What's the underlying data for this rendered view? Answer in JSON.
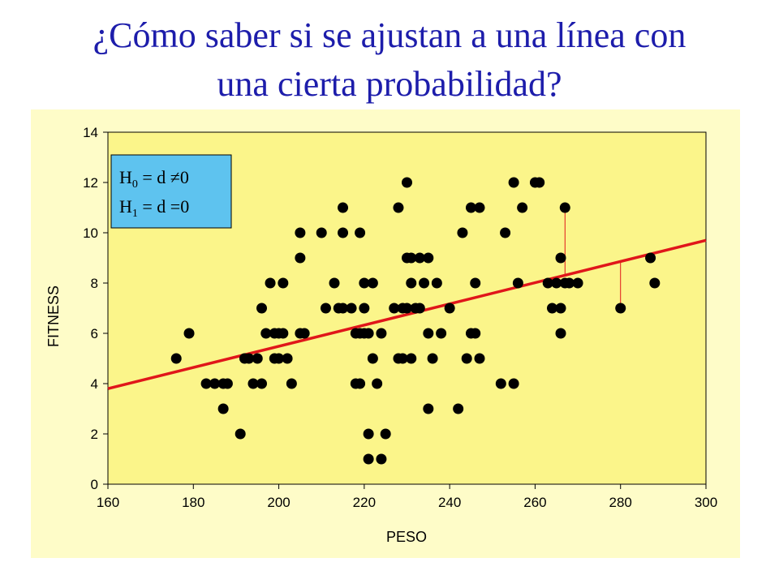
{
  "title": [
    "¿Cómo saber si se ajustan a una línea con",
    "una cierta probabilidad?"
  ],
  "chart_data": {
    "type": "scatter",
    "x_label": "PESO",
    "y_label": "FITNESS",
    "xlim": [
      160,
      300
    ],
    "xticks": [
      160,
      180,
      200,
      220,
      240,
      260,
      280,
      300
    ],
    "ylim": [
      0,
      14
    ],
    "yticks": [
      0,
      2,
      4,
      6,
      8,
      10,
      12,
      14
    ],
    "color": "#000000",
    "line_color": "#e0161a",
    "x": [
      176,
      179,
      183,
      185,
      187,
      188,
      187,
      191,
      192,
      193,
      194,
      195,
      196,
      196,
      197,
      198,
      199,
      200,
      199,
      200,
      201,
      201,
      202,
      203,
      205,
      205,
      205,
      206,
      210,
      211,
      213,
      214,
      215,
      215,
      215,
      217,
      218,
      218,
      219,
      219,
      219,
      220,
      220,
      220,
      221,
      221,
      221,
      222,
      222,
      223,
      224,
      224,
      225,
      227,
      228,
      228,
      229,
      229,
      230,
      230,
      230,
      231,
      231,
      231,
      232,
      233,
      233,
      234,
      235,
      235,
      235,
      236,
      237,
      238,
      240,
      242,
      243,
      244,
      245,
      245,
      246,
      246,
      247,
      247,
      252,
      253,
      255,
      255,
      256,
      257,
      260,
      261,
      263,
      264,
      265,
      266,
      266,
      266,
      267,
      267,
      268,
      270,
      280,
      287,
      288
    ],
    "y": [
      5,
      6,
      4,
      4,
      4,
      4,
      3,
      2,
      5,
      5,
      4,
      5,
      4,
      7,
      6,
      8,
      5,
      5,
      6,
      6,
      6,
      8,
      5,
      4,
      9,
      10,
      6,
      6,
      10,
      7,
      8,
      7,
      11,
      10,
      7,
      7,
      6,
      4,
      10,
      6,
      4,
      8,
      6,
      7,
      6,
      2,
      1,
      5,
      8,
      4,
      6,
      1,
      2,
      7,
      11,
      5,
      7,
      5,
      7,
      9,
      12,
      5,
      8,
      9,
      7,
      7,
      9,
      8,
      9,
      6,
      3,
      5,
      8,
      6,
      7,
      3,
      10,
      5,
      11,
      6,
      8,
      6,
      11,
      5,
      4,
      10,
      12,
      4,
      8,
      11,
      12,
      12,
      8,
      7,
      8,
      9,
      7,
      6,
      11,
      8,
      8,
      8,
      7,
      9,
      8
    ],
    "fit_line": {
      "x": [
        160,
        300
      ],
      "y": [
        3.8,
        9.7
      ]
    },
    "residuals": [
      {
        "x": 267,
        "y": 11,
        "fit": 8.3
      },
      {
        "x": 280,
        "y": 7,
        "fit": 8.9
      }
    ],
    "hypotheses": [
      {
        "symbol": "H",
        "sub": "0",
        "rest": " = d ≠0"
      },
      {
        "symbol": "H",
        "sub": "1",
        "rest": " = d =0"
      }
    ]
  }
}
